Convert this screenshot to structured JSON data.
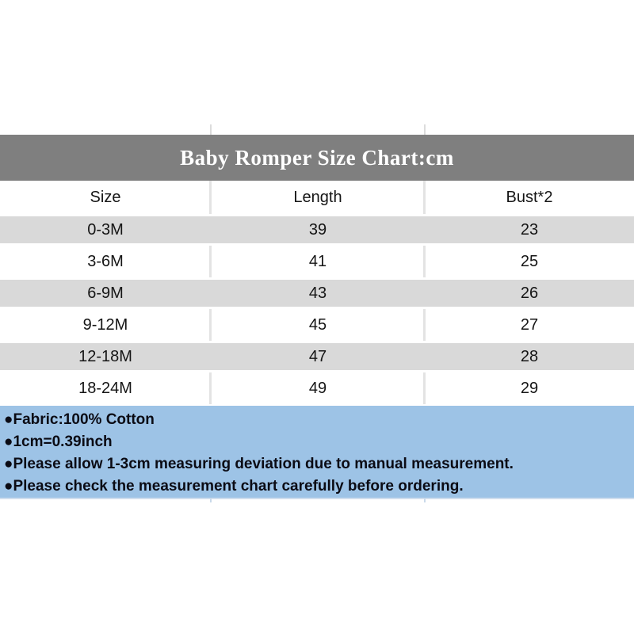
{
  "page": {
    "background": "#ffffff"
  },
  "header_band": {
    "title": "Baby Romper Size Chart:cm",
    "bg_color": "#7f7f7f",
    "text_color": "#ffffff"
  },
  "table": {
    "columns": {
      "size": "Size",
      "length": "Length",
      "bust": "Bust*2"
    },
    "stripe_color": "#d9d9d9",
    "rows": [
      {
        "size": "0-3M",
        "length": "39",
        "bust": "23"
      },
      {
        "size": "3-6M",
        "length": "41",
        "bust": "25"
      },
      {
        "size": "6-9M",
        "length": "43",
        "bust": "26"
      },
      {
        "size": "9-12M",
        "length": "45",
        "bust": "27"
      },
      {
        "size": "12-18M",
        "length": "47",
        "bust": "28"
      },
      {
        "size": "18-24M",
        "length": "49",
        "bust": "29"
      }
    ]
  },
  "notes": {
    "bg_color": "#9dc3e6",
    "lines": [
      "●Fabric:100% Cotton",
      "●1cm=0.39inch",
      "●Please allow 1-3cm measuring deviation due to manual measurement.",
      "●Please check the measurement chart carefully before ordering."
    ]
  },
  "chart_data": {
    "type": "table",
    "title": "Baby Romper Size Chart:cm",
    "unit": "cm",
    "columns": [
      "Size",
      "Length",
      "Bust*2"
    ],
    "rows": [
      [
        "0-3M",
        39,
        23
      ],
      [
        "3-6M",
        41,
        25
      ],
      [
        "6-9M",
        43,
        26
      ],
      [
        "9-12M",
        45,
        27
      ],
      [
        "12-18M",
        47,
        28
      ],
      [
        "18-24M",
        49,
        29
      ]
    ],
    "notes": [
      "Fabric:100% Cotton",
      "1cm=0.39inch",
      "Please allow 1-3cm measuring deviation due to manual measurement.",
      "Please check the measurement chart carefully before ordering."
    ]
  }
}
